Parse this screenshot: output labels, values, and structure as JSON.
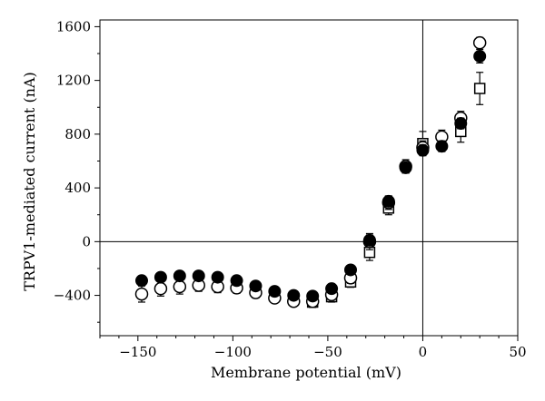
{
  "chart_data": {
    "type": "scatter",
    "xlabel": "Membrane potential (mV)",
    "ylabel": "TRPV1-mediated current (nA)",
    "xlim": [
      -170,
      50
    ],
    "ylim": [
      -700,
      1650
    ],
    "x_ticks": [
      -150,
      -100,
      -50,
      0,
      50
    ],
    "x_tick_labels": [
      "−150",
      "−100",
      "−50",
      "0",
      "50"
    ],
    "y_ticks": [
      -400,
      0,
      400,
      800,
      1200,
      1600
    ],
    "y_tick_labels": [
      "−400",
      "0",
      "400",
      "800",
      "1200",
      "1600"
    ],
    "grid": false,
    "zero_lines": true,
    "series": [
      {
        "marker": "filled-circle",
        "color": "#000000",
        "x": [
          -148,
          -138,
          -128,
          -118,
          -108,
          -98,
          -88,
          -78,
          -68,
          -58,
          -48,
          -38,
          -28,
          -18,
          -9,
          0,
          10,
          20,
          30
        ],
        "y": [
          -290,
          -265,
          -255,
          -255,
          -265,
          -290,
          -330,
          -370,
          -400,
          -405,
          -350,
          -210,
          10,
          300,
          550,
          680,
          710,
          880,
          1380
        ],
        "err": [
          30,
          25,
          25,
          25,
          25,
          25,
          25,
          25,
          25,
          25,
          25,
          30,
          40,
          40,
          40,
          40,
          40,
          40,
          50
        ]
      },
      {
        "marker": "open-circle",
        "color": "#000000",
        "x": [
          -148,
          -138,
          -128,
          -118,
          -108,
          -98,
          -88,
          -78,
          -68,
          -58,
          -48,
          -38,
          -28,
          -18,
          -9,
          0,
          10,
          20,
          30
        ],
        "y": [
          -390,
          -350,
          -335,
          -325,
          -335,
          -345,
          -380,
          -420,
          -445,
          -445,
          -395,
          -270,
          0,
          290,
          560,
          700,
          780,
          920,
          1480
        ],
        "err": [
          60,
          55,
          55,
          45,
          45,
          40,
          40,
          35,
          30,
          30,
          30,
          40,
          60,
          50,
          50,
          50,
          50,
          50,
          40
        ]
      },
      {
        "marker": "open-square",
        "color": "#000000",
        "x": [
          -58,
          -48,
          -38,
          -28,
          -18,
          0,
          20,
          30
        ],
        "y": [
          -450,
          -410,
          -300,
          -80,
          250,
          730,
          820,
          1140
        ],
        "err": [
          40,
          40,
          40,
          60,
          50,
          90,
          80,
          120
        ]
      }
    ]
  }
}
